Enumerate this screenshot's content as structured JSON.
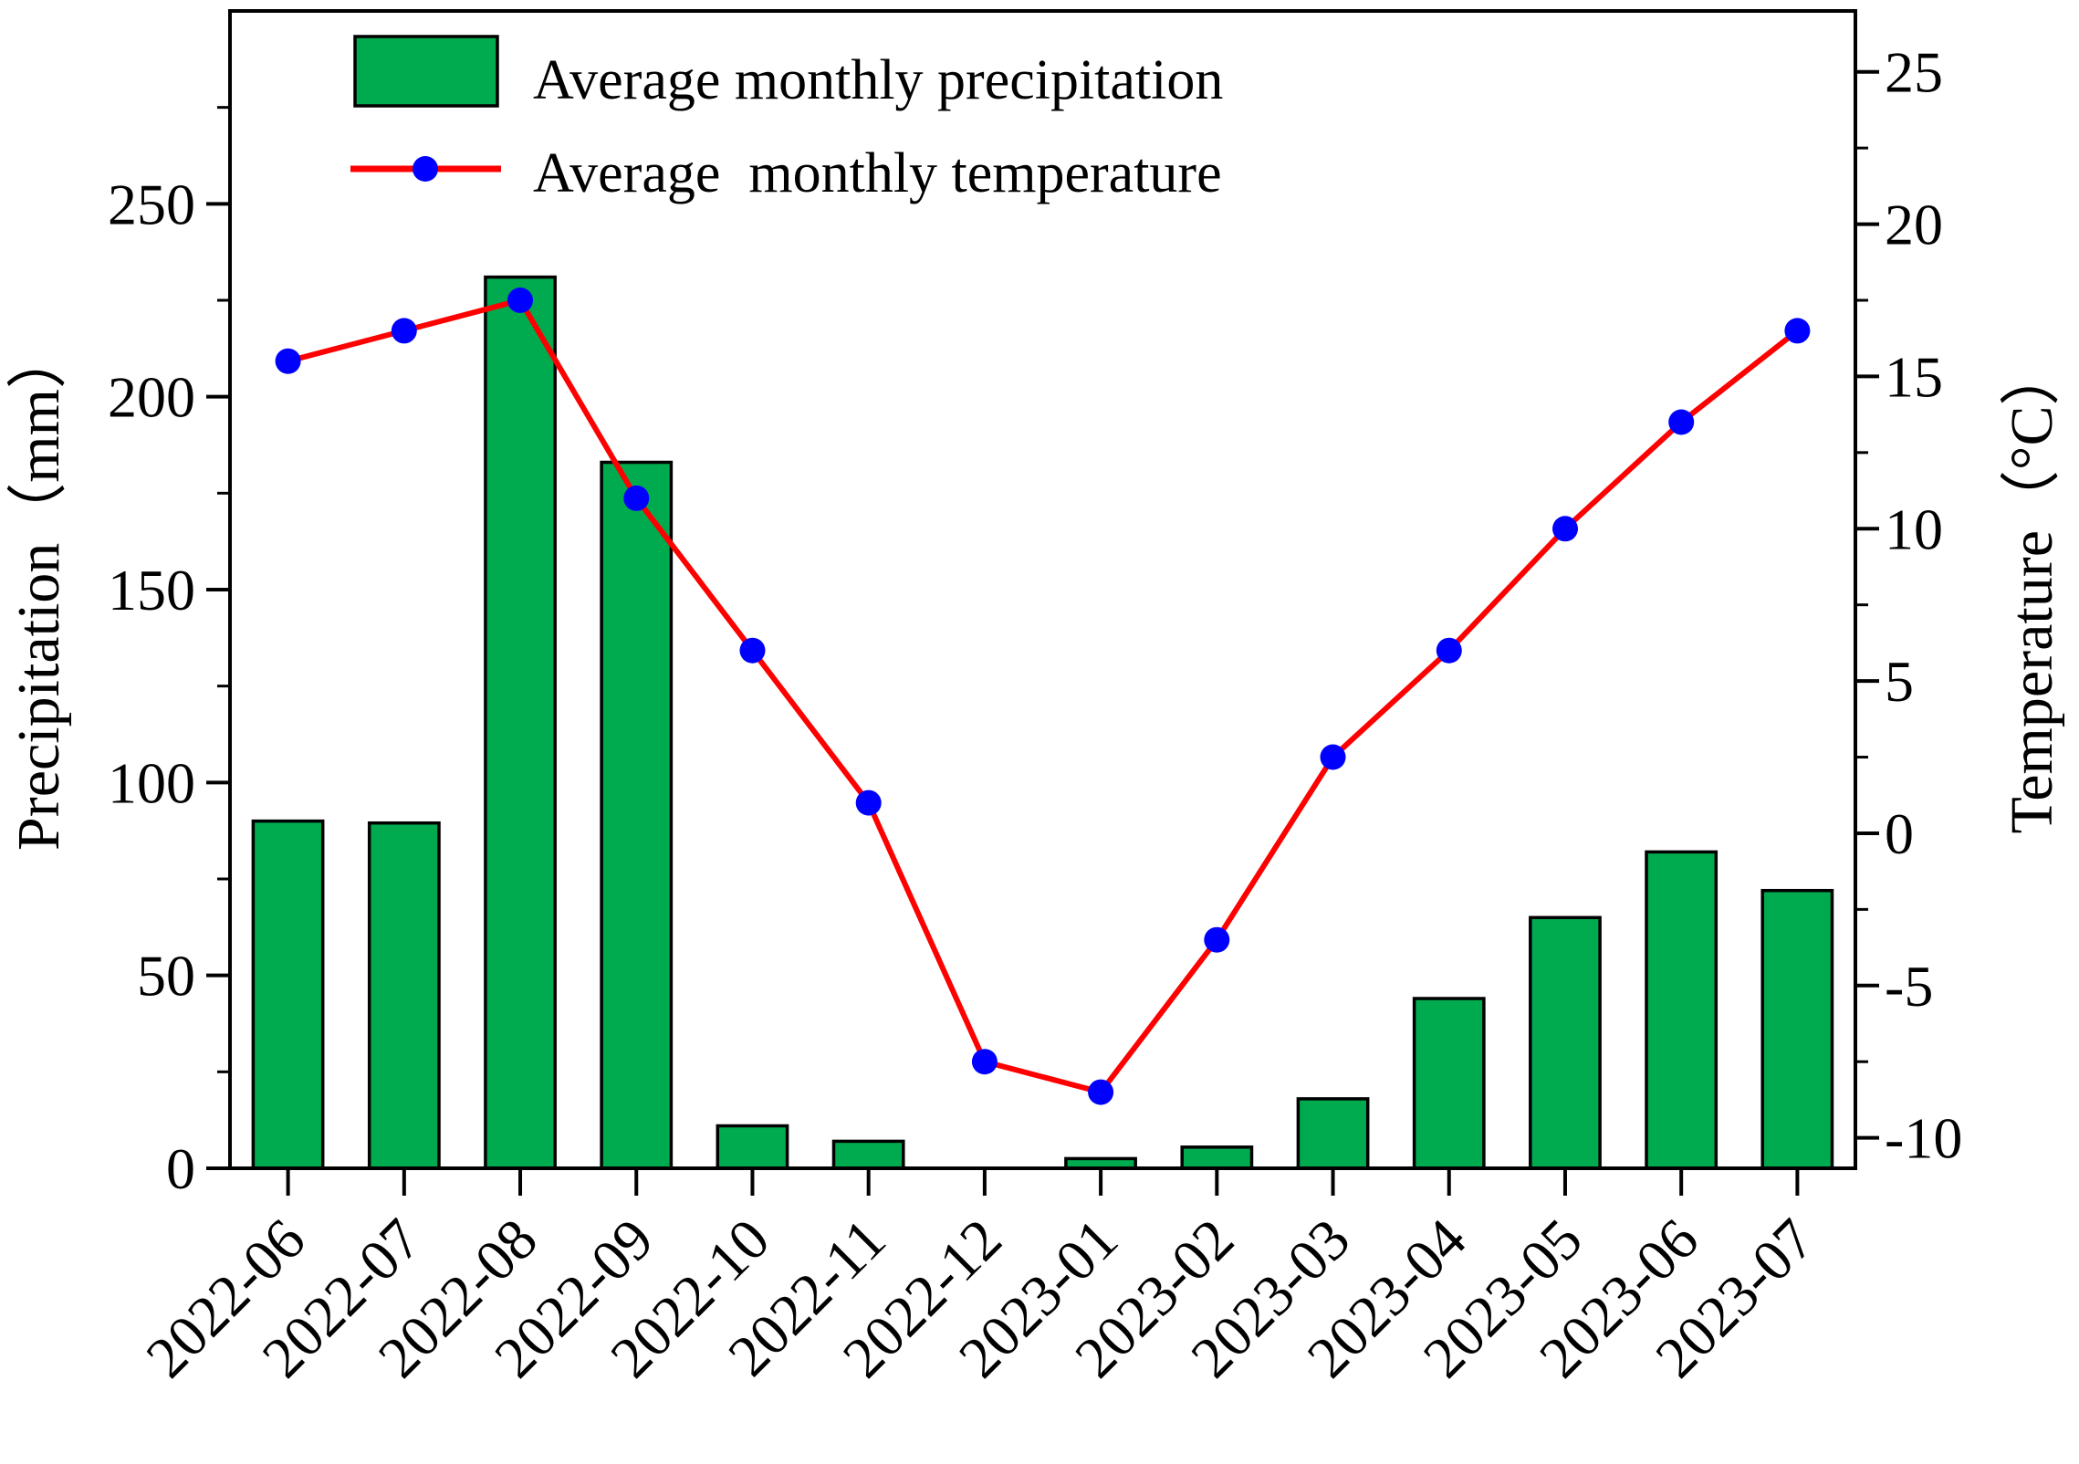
{
  "chart_data": {
    "type": "bar",
    "categories": [
      "2022-06",
      "2022-07",
      "2022-08",
      "2022-09",
      "2022-10",
      "2022-11",
      "2022-12",
      "2023-01",
      "2023-02",
      "2023-03",
      "2023-04",
      "2023-05",
      "2023-06",
      "2023-07"
    ],
    "series": [
      {
        "name": "Average monthly precipitation",
        "type": "bar",
        "axis": "left",
        "color": "#00aa4f",
        "values": [
          90,
          89.5,
          231,
          183,
          11,
          7,
          0,
          2.5,
          5.5,
          18,
          44,
          65,
          82,
          72
        ]
      },
      {
        "name": "Average  monthly temperature",
        "type": "line",
        "axis": "right",
        "color": "#ff0000",
        "marker_color": "#0000ff",
        "values": [
          15.5,
          16.5,
          17.5,
          11,
          6,
          1,
          -7.5,
          -8.5,
          -3.5,
          2.5,
          6,
          10,
          13.5,
          16.5
        ]
      }
    ],
    "ylabel": "Precipitation（mm）",
    "y2label": "Temperature（°C）",
    "ylim": [
      0,
      300
    ],
    "y2lim": [
      -11,
      27
    ],
    "yticks": [
      0,
      50,
      100,
      150,
      200,
      250
    ],
    "y2ticks": [
      -10,
      -5,
      0,
      5,
      10,
      15,
      20,
      25
    ],
    "ytick_labels": [
      "0",
      "50",
      "100",
      "150",
      "200",
      "250"
    ],
    "y2tick_labels": [
      "-10",
      "-5",
      "0",
      "5",
      "10",
      "15",
      "20",
      "25"
    ],
    "legend_position": "top-left",
    "grid": false
  }
}
